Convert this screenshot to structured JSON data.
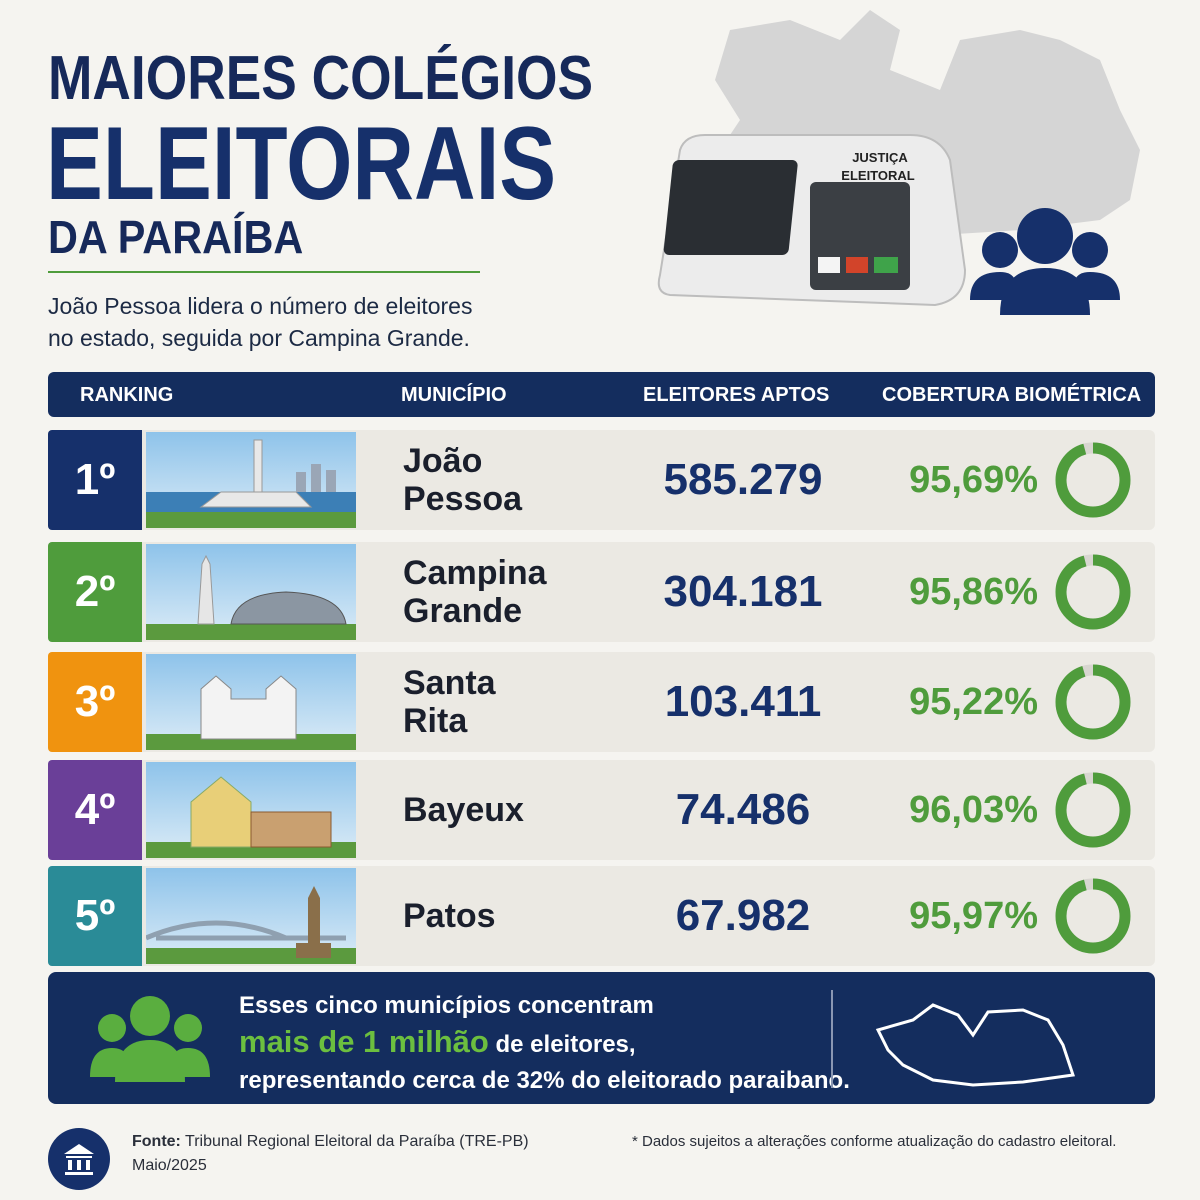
{
  "header": {
    "title_lines": [
      "MAIORES COLÉGIOS",
      "ELEITORAIS",
      "DA PARAÍBA"
    ],
    "subtitle_lines": [
      "João Pessoa lidera o número de eleitores",
      "no estado, seguida por Campina Grande."
    ],
    "machine_label_lines": [
      "JUSTIÇA",
      "ELEITORAL"
    ]
  },
  "table": {
    "headers": [
      "RANKING",
      "MUNICÍPIO",
      "ELEITORES APTOS",
      "COBERTURA BIOMÉTRICA"
    ],
    "rows": [
      {
        "rank": "1º",
        "color": "#16306b",
        "municipality_lines": [
          "João",
          "Pessoa"
        ],
        "voters": "585.279",
        "coverage": {
          "value": 95.69,
          "label": "95,69%"
        }
      },
      {
        "rank": "2º",
        "color": "#4f9c3c",
        "municipality_lines": [
          "Campina",
          "Grande"
        ],
        "voters": "304.181",
        "coverage": {
          "value": 95.86,
          "label": "95,86%"
        }
      },
      {
        "rank": "3º",
        "color": "#f0930f",
        "municipality_lines": [
          "Santa",
          "Rita"
        ],
        "voters": "103.411",
        "coverage": {
          "value": 95.22,
          "label": "95,22%"
        }
      },
      {
        "rank": "4º",
        "color": "#6a3f98",
        "municipality_lines": [
          "Bayeux"
        ],
        "voters": "74.486",
        "coverage": {
          "value": 96.03,
          "label": "96,03%"
        }
      },
      {
        "rank": "5º",
        "color": "#2a8b97",
        "municipality_lines": [
          "Patos"
        ],
        "voters": "67.982",
        "coverage": {
          "value": 95.97,
          "label": "95,97%"
        }
      }
    ]
  },
  "summary": {
    "line1": "Esses cinco municípios concentram",
    "highlight": "mais de 1 milhão",
    "line2_rest": "de eleitores,",
    "line3": "representando cerca de 32% do eleitorado paraibano."
  },
  "footer": {
    "source_label": "Fonte:",
    "source": "Tribunal Regional Eleitoral da Paraíba (TRE-PB)",
    "date": "Maio/2025",
    "note": "* Dados sujeitos a alterações conforme atualização do cadastro eleitoral."
  }
}
